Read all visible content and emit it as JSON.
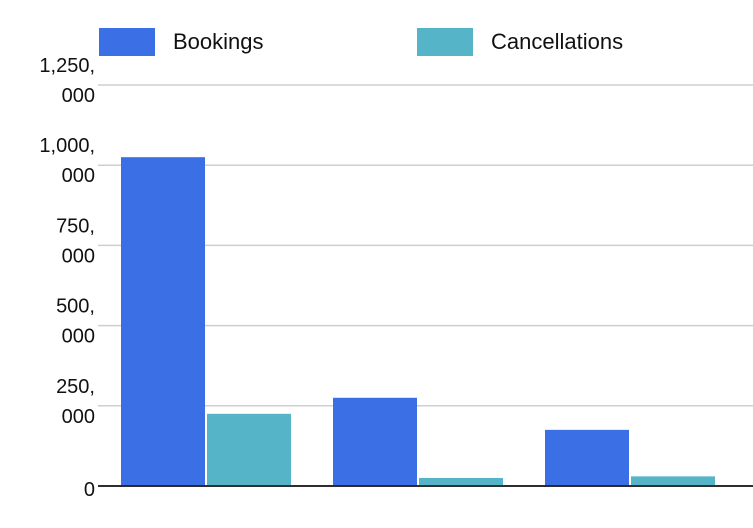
{
  "chart_data": {
    "type": "bar",
    "categories": [
      null,
      null,
      null
    ],
    "series": [
      {
        "name": "Bookings",
        "color": "#3b6fe6",
        "values": [
          1025000,
          275000,
          175000
        ]
      },
      {
        "name": "Cancellations",
        "color": "#56b4c9",
        "values": [
          225000,
          25000,
          30000
        ]
      }
    ],
    "ylim": [
      0,
      1250000
    ],
    "yticks": [
      0,
      {
        "value": 250000,
        "label": "250,000"
      },
      {
        "value": 500000,
        "label": "500,000"
      },
      {
        "value": 750000,
        "label": "750,000"
      },
      {
        "value": 1000000,
        "label": "1,000,000"
      },
      {
        "value": 1250000,
        "label": "1,250,000"
      }
    ],
    "grid": true,
    "legend": "top"
  }
}
